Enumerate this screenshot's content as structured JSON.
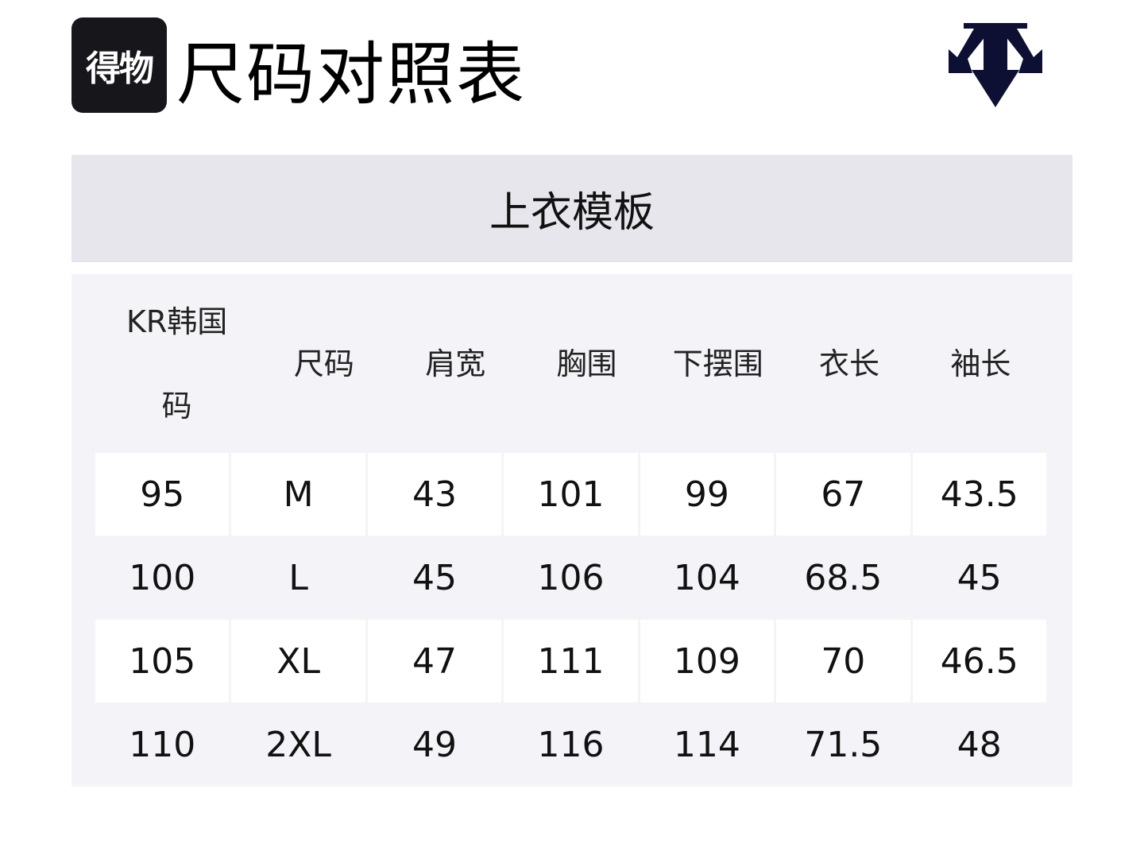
{
  "brand": {
    "logo_text": "得物"
  },
  "title": "尺码对照表",
  "brand_logo": {
    "name": "descente-logo",
    "color": "#0d0f33"
  },
  "section": "上衣模板",
  "table": {
    "headers": [
      "KR韩国码",
      "尺码",
      "肩宽",
      "胸围",
      "下摆围",
      "衣长",
      "袖长"
    ],
    "rows": [
      [
        "95",
        "M",
        "43",
        "101",
        "99",
        "67",
        "43.5"
      ],
      [
        "100",
        "L",
        "45",
        "106",
        "104",
        "68.5",
        "45"
      ],
      [
        "105",
        "XL",
        "47",
        "111",
        "109",
        "70",
        "46.5"
      ],
      [
        "110",
        "2XL",
        "49",
        "116",
        "114",
        "71.5",
        "48"
      ]
    ]
  }
}
